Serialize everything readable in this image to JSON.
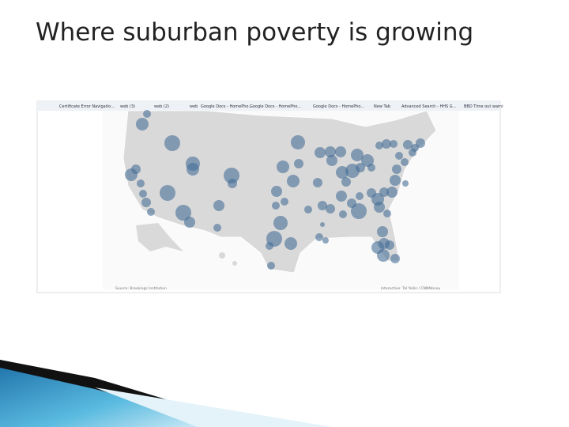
{
  "title": "Where suburban poverty is growing",
  "screenshot": {
    "bookmarks": [
      "Certificate Error Navigatio...",
      "web (3)",
      "web (2)",
      "web",
      "Google Docs - HomePho...",
      "Google Docs - HomePho...",
      "Google Docs - HomePho...",
      "New Tab",
      "Advanced Search - HHS G...",
      "BBD Time out warni"
    ],
    "source": "Source: Brookings Institution",
    "credit": "Interactive: Tal Yellin / CNNMoney"
  }
}
